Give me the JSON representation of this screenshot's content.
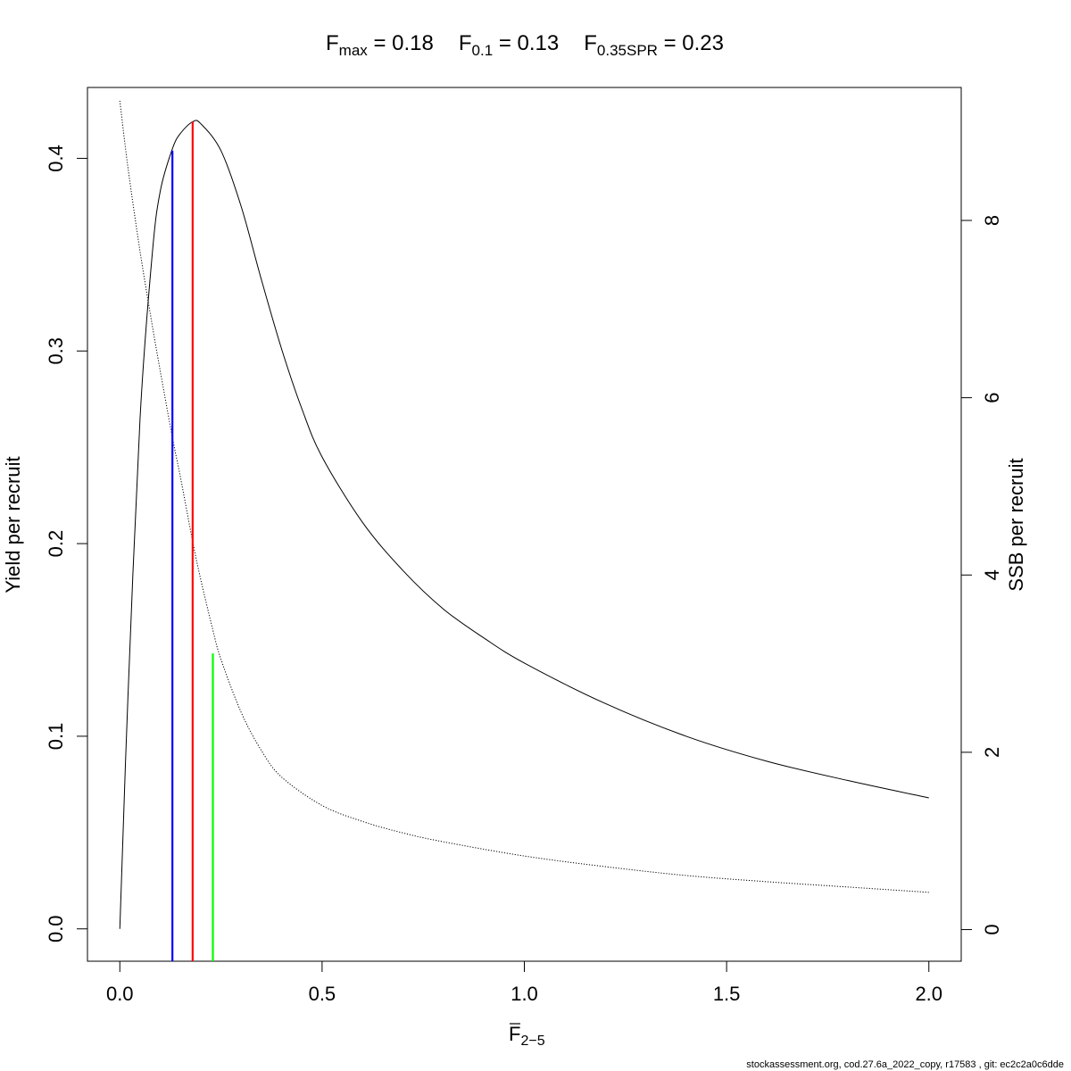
{
  "title": {
    "fmax": {
      "base": "F",
      "sub": "max",
      "eq": " = 0.18"
    },
    "f01": {
      "base": "F",
      "sub": "0.1",
      "eq": " = 0.13"
    },
    "fspr": {
      "base": "F",
      "sub": "0.35SPR",
      "eq": " = 0.23"
    }
  },
  "footer": "stockassessment.org, cod.27.6a_2022_copy, r17583 , git: ec2c2a0c6dde",
  "chart_data": {
    "type": "line",
    "xlabel": {
      "base": "F",
      "sub": "2−5"
    },
    "ylabel_left": "Yield per recruit",
    "ylabel_right": "SSB per recruit",
    "xlim": [
      -0.08,
      2.08
    ],
    "ylim_left": [
      -0.0168,
      0.4368
    ],
    "ylim_right": [
      -0.357,
      9.5
    ],
    "x_ticks": [
      {
        "v": 0,
        "label": "0.0"
      },
      {
        "v": 0.5,
        "label": "0.5"
      },
      {
        "v": 1,
        "label": "1.0"
      },
      {
        "v": 1.5,
        "label": "1.5"
      },
      {
        "v": 2,
        "label": "2.0"
      }
    ],
    "y_left_ticks": [
      {
        "v": 0,
        "label": "0.0"
      },
      {
        "v": 0.1,
        "label": "0.1"
      },
      {
        "v": 0.2,
        "label": "0.2"
      },
      {
        "v": 0.3,
        "label": "0.3"
      },
      {
        "v": 0.4,
        "label": "0.4"
      }
    ],
    "y_right_ticks": [
      {
        "v": 0,
        "label": "0"
      },
      {
        "v": 2,
        "label": "2"
      },
      {
        "v": 4,
        "label": "4"
      },
      {
        "v": 6,
        "label": "6"
      },
      {
        "v": 8,
        "label": "8"
      }
    ],
    "grid": false,
    "series": [
      {
        "axis": "left",
        "style": "solid",
        "color": "#000000",
        "x": [
          0,
          0.02,
          0.05,
          0.08,
          0.1,
          0.13,
          0.15,
          0.18,
          0.2,
          0.25,
          0.3,
          0.35,
          0.4,
          0.45,
          0.5,
          0.6,
          0.7,
          0.8,
          0.9,
          1.0,
          1.2,
          1.4,
          1.6,
          1.8,
          2.0
        ],
        "y": [
          0,
          0.12,
          0.265,
          0.35,
          0.383,
          0.405,
          0.413,
          0.419,
          0.418,
          0.404,
          0.375,
          0.337,
          0.301,
          0.27,
          0.245,
          0.211,
          0.186,
          0.166,
          0.151,
          0.138,
          0.117,
          0.1,
          0.087,
          0.077,
          0.068
        ]
      },
      {
        "axis": "right",
        "style": "dotted",
        "color": "#000000",
        "x": [
          0,
          0.02,
          0.05,
          0.08,
          0.1,
          0.13,
          0.15,
          0.18,
          0.2,
          0.23,
          0.25,
          0.3,
          0.35,
          0.4,
          0.5,
          0.6,
          0.7,
          0.8,
          1.0,
          1.2,
          1.4,
          1.6,
          1.8,
          2.0
        ],
        "y": [
          9.35,
          8.6,
          7.65,
          6.82,
          6.3,
          5.55,
          5.1,
          4.38,
          3.95,
          3.38,
          3.05,
          2.45,
          2.02,
          1.72,
          1.4,
          1.22,
          1.09,
          0.99,
          0.83,
          0.71,
          0.61,
          0.54,
          0.48,
          0.42
        ]
      }
    ],
    "reference_lines": [
      {
        "name": "F0.1",
        "x": 0.13,
        "y": 0.404,
        "color": "#0000ff"
      },
      {
        "name": "Fmax",
        "x": 0.18,
        "y": 0.419,
        "color": "#ff0000"
      },
      {
        "name": "F0.35SPR",
        "x": 0.23,
        "y": 0.143,
        "color": "#00ff00"
      }
    ]
  }
}
